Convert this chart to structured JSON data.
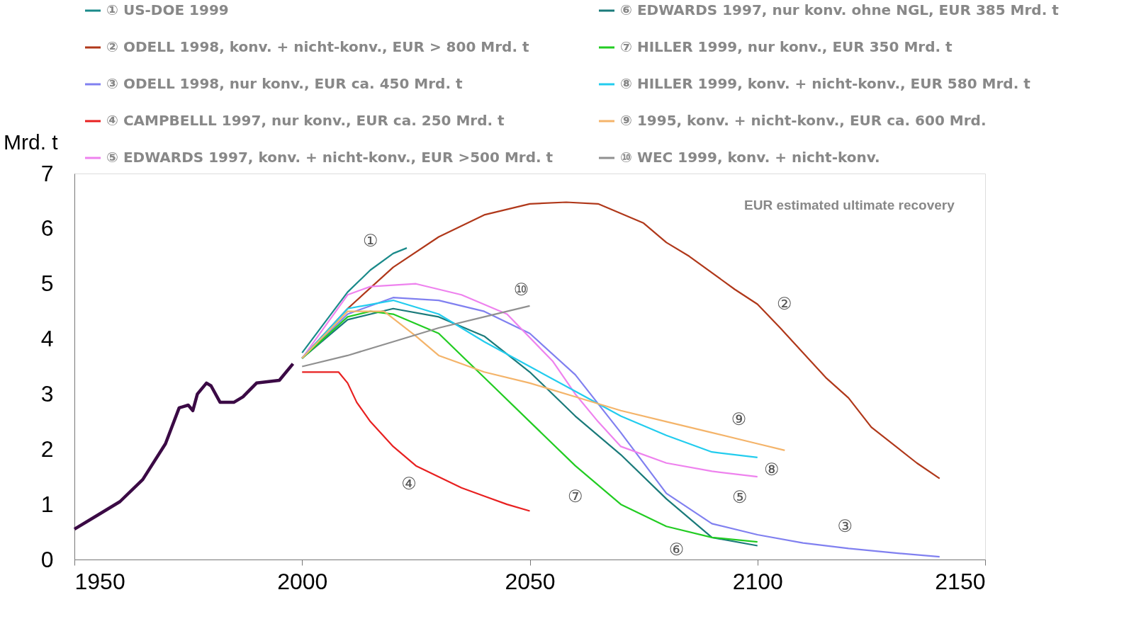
{
  "chart_data": {
    "type": "line",
    "ylabel": "Mrd. t",
    "xlim": [
      1950,
      2150
    ],
    "xticks": [
      1950,
      2000,
      2050,
      2100,
      2150
    ],
    "ylim": [
      0,
      7
    ],
    "yticks": [
      0,
      1,
      2,
      3,
      4,
      5,
      6,
      7
    ],
    "grid": false,
    "legend": "top",
    "marker": "none",
    "line_style": "solid",
    "series": [
      {
        "color": "#3b0a45",
        "x": [
          1950,
          1955,
          1960,
          1965,
          1970,
          1973,
          1975,
          1976,
          1977,
          1979,
          1980,
          1982,
          1985,
          1987,
          1990,
          1995,
          1998
        ],
        "values": [
          0.55,
          0.8,
          1.05,
          1.45,
          2.1,
          2.75,
          2.8,
          2.7,
          3.0,
          3.2,
          3.15,
          2.85,
          2.85,
          2.95,
          3.2,
          3.25,
          3.55
        ]
      },
      {
        "name": "① US-DOE 1999",
        "color": "#1a8a8a",
        "x": [
          2000,
          2005,
          2010,
          2015,
          2020,
          2023
        ],
        "values": [
          3.75,
          4.3,
          4.85,
          5.25,
          5.55,
          5.65
        ]
      },
      {
        "name": "② ODELL 1998, konv. + nicht-konv.,  EUR > 800 Mrd. t",
        "color": "#b0381a",
        "x": [
          2000,
          2010,
          2020,
          2030,
          2040,
          2050,
          2058,
          2065,
          2075,
          2080,
          2085,
          2095,
          2100,
          2105,
          2115,
          2120,
          2125,
          2135,
          2140
        ],
        "values": [
          3.65,
          4.55,
          5.3,
          5.85,
          6.25,
          6.45,
          6.48,
          6.45,
          6.1,
          5.75,
          5.5,
          4.9,
          4.63,
          4.2,
          3.3,
          2.93,
          2.4,
          1.75,
          1.47
        ]
      },
      {
        "name": "③ ODELL 1998, nur konv., EUR ca. 450 Mrd. t",
        "color": "#8080f0",
        "x": [
          2000,
          2010,
          2020,
          2030,
          2040,
          2050,
          2060,
          2070,
          2080,
          2090,
          2100,
          2110,
          2120,
          2130,
          2140
        ],
        "values": [
          3.65,
          4.45,
          4.75,
          4.7,
          4.5,
          4.1,
          3.35,
          2.3,
          1.2,
          0.65,
          0.45,
          0.3,
          0.2,
          0.12,
          0.05
        ]
      },
      {
        "name": "④ CAMPBELLL 1997, nur konv., EUR ca. 250 Mrd. t",
        "color": "#e82020",
        "x": [
          2000,
          2008,
          2010,
          2012,
          2015,
          2020,
          2025,
          2030,
          2035,
          2040,
          2045,
          2050
        ],
        "values": [
          3.4,
          3.4,
          3.2,
          2.85,
          2.5,
          2.05,
          1.7,
          1.5,
          1.3,
          1.15,
          1.0,
          0.88
        ]
      },
      {
        "name": "⑤ EDWARDS 1997, konv. + nicht-konv., EUR >500 Mrd. t",
        "color": "#ee82ee",
        "x": [
          2000,
          2010,
          2015,
          2025,
          2035,
          2045,
          2055,
          2060,
          2065,
          2070,
          2080,
          2090,
          2100
        ],
        "values": [
          3.65,
          4.8,
          4.95,
          5.0,
          4.8,
          4.45,
          3.6,
          3.0,
          2.5,
          2.05,
          1.75,
          1.6,
          1.5
        ]
      },
      {
        "name": "⑥ EDWARDS 1997, nur konv. ohne NGL, EUR 385 Mrd. t",
        "color": "#1a7a7a",
        "x": [
          2000,
          2010,
          2020,
          2030,
          2040,
          2050,
          2060,
          2070,
          2080,
          2090,
          2100
        ],
        "values": [
          3.65,
          4.35,
          4.55,
          4.4,
          4.05,
          3.4,
          2.6,
          1.9,
          1.1,
          0.4,
          0.25
        ]
      },
      {
        "name": "⑦ HILLER 1999, nur konv., EUR 350 Mrd. t",
        "color": "#22cc22",
        "x": [
          2000,
          2010,
          2015,
          2020,
          2030,
          2040,
          2050,
          2060,
          2070,
          2080,
          2090,
          2100
        ],
        "values": [
          3.65,
          4.4,
          4.5,
          4.45,
          4.1,
          3.3,
          2.5,
          1.7,
          1.0,
          0.6,
          0.4,
          0.32
        ]
      },
      {
        "name": "⑧ HILLER 1999, konv. + nicht-konv., EUR 580 Mrd. t",
        "color": "#22ccee",
        "x": [
          2000,
          2010,
          2020,
          2030,
          2040,
          2050,
          2060,
          2070,
          2080,
          2090,
          2100
        ],
        "values": [
          3.65,
          4.55,
          4.7,
          4.45,
          3.95,
          3.5,
          3.05,
          2.6,
          2.25,
          1.95,
          1.85
        ]
      },
      {
        "name": "⑨ 1995, konv. + nicht-konv., EUR ca. 600 Mrd.",
        "color": "#f4b46a",
        "x": [
          2000,
          2010,
          2018,
          2025,
          2030,
          2040,
          2050,
          2060,
          2070,
          2080,
          2090,
          2100,
          2106
        ],
        "values": [
          3.65,
          4.5,
          4.5,
          4.05,
          3.7,
          3.4,
          3.2,
          2.95,
          2.7,
          2.5,
          2.3,
          2.1,
          1.98
        ]
      },
      {
        "name": "⑩ WEC 1999, konv. + nicht-konv.",
        "color": "#909090",
        "x": [
          2000,
          2010,
          2020,
          2030,
          2040,
          2050
        ],
        "values": [
          3.5,
          3.7,
          3.95,
          4.2,
          4.4,
          4.6
        ]
      }
    ],
    "annotations": [
      "EUR  estimated ultimate recovery",
      {
        "text": "①",
        "x": 2015,
        "y": 5.25
      },
      {
        "text": "②",
        "x": 2100,
        "y": 4.63
      },
      {
        "text": "③",
        "x": 2120,
        "y": 0.2
      },
      {
        "text": "④",
        "x": 2025,
        "y": 1.7
      },
      {
        "text": "⑤",
        "x": 2100,
        "y": 1.5
      },
      {
        "text": "⑥",
        "x": 2090,
        "y": 0.4
      },
      {
        "text": "⑦",
        "x": 2060,
        "y": 1.7
      },
      {
        "text": "⑧",
        "x": 2100,
        "y": 1.85
      },
      {
        "text": "⑨",
        "x": 2090,
        "y": 2.3
      },
      {
        "text": "⑩",
        "x": 2050,
        "y": 4.6
      }
    ]
  }
}
